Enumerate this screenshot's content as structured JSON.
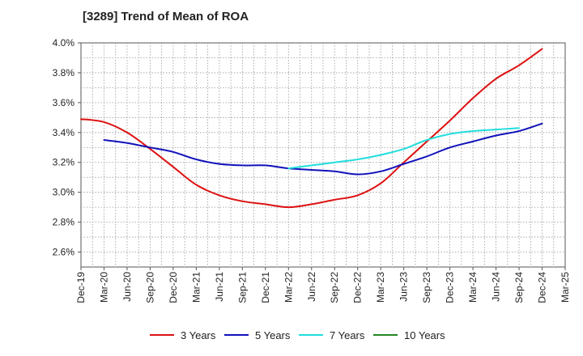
{
  "chart_data": {
    "type": "line",
    "title": "[3289]  Trend of Mean of ROA",
    "xlabel": "",
    "ylabel": "",
    "ylim": [
      2.5,
      4.0
    ],
    "y_ticks": [
      2.6,
      2.8,
      3.0,
      3.2,
      3.4,
      3.6,
      3.8,
      4.0
    ],
    "y_tick_labels": [
      "2.6%",
      "2.8%",
      "3.0%",
      "3.2%",
      "3.4%",
      "3.6%",
      "3.8%",
      "4.0%"
    ],
    "x_tick_labels": [
      "Dec-19",
      "Mar-20",
      "Jun-20",
      "Sep-20",
      "Dec-20",
      "Mar-21",
      "Jun-21",
      "Sep-21",
      "Dec-21",
      "Mar-22",
      "Jun-22",
      "Sep-22",
      "Dec-22",
      "Mar-23",
      "Jun-23",
      "Sep-23",
      "Dec-23",
      "Mar-24",
      "Jun-24",
      "Sep-24",
      "Dec-24",
      "Mar-25"
    ],
    "grid": true,
    "legend_position": "bottom",
    "series": [
      {
        "name": "3 Years",
        "color": "#dd1111",
        "start_index": 0,
        "values": [
          3.49,
          3.47,
          3.4,
          3.29,
          3.17,
          3.05,
          2.98,
          2.94,
          2.92,
          2.9,
          2.92,
          2.95,
          2.98,
          3.06,
          3.2,
          3.34,
          3.48,
          3.63,
          3.76,
          3.85,
          3.96
        ]
      },
      {
        "name": "5 Years",
        "color": "#1111bb",
        "start_index": 1,
        "values": [
          3.35,
          3.33,
          3.3,
          3.27,
          3.22,
          3.19,
          3.18,
          3.18,
          3.16,
          3.15,
          3.14,
          3.12,
          3.14,
          3.19,
          3.24,
          3.3,
          3.34,
          3.38,
          3.41,
          3.46
        ]
      },
      {
        "name": "7 Years",
        "color": "#22dddd",
        "start_index": 9,
        "values": [
          3.16,
          3.18,
          3.2,
          3.22,
          3.25,
          3.29,
          3.35,
          3.39,
          3.41,
          3.42,
          3.43
        ]
      },
      {
        "name": "10 Years",
        "color": "#228822",
        "start_index": 0,
        "values": []
      }
    ]
  }
}
